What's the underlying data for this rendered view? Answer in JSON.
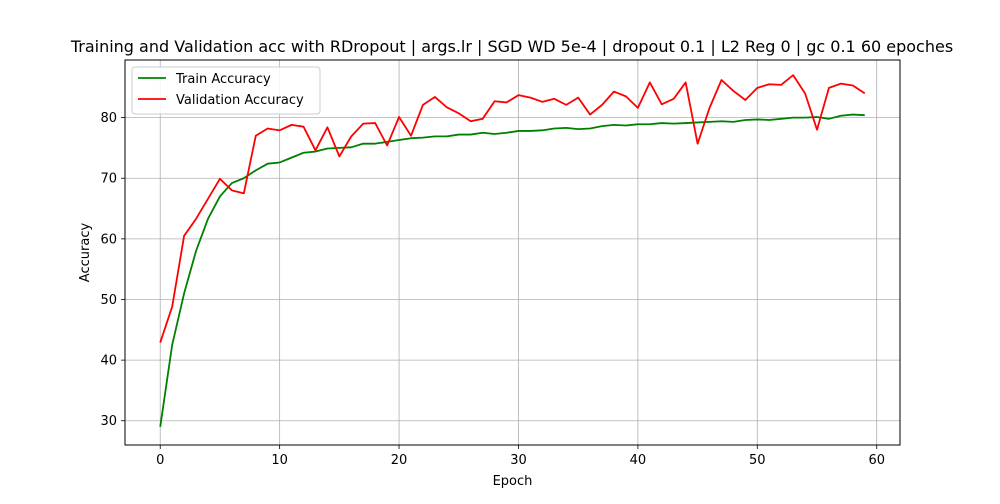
{
  "chart_data": {
    "type": "line",
    "title": "Training and Validation acc with RDropout | args.lr | SGD WD 5e-4 | dropout 0.1 | L2 Reg 0 | gc 0.1 60 epoches",
    "xlabel": "Epoch",
    "ylabel": "Accuracy",
    "xlim": [
      -2.95,
      61.95
    ],
    "ylim": [
      26.0,
      89.5
    ],
    "xticks": [
      0,
      10,
      20,
      30,
      40,
      50,
      60
    ],
    "yticks": [
      30,
      40,
      50,
      60,
      70,
      80
    ],
    "grid": true,
    "legend_position": "top-left",
    "x": [
      0,
      1,
      2,
      3,
      4,
      5,
      6,
      7,
      8,
      9,
      10,
      11,
      12,
      13,
      14,
      15,
      16,
      17,
      18,
      19,
      20,
      21,
      22,
      23,
      24,
      25,
      26,
      27,
      28,
      29,
      30,
      31,
      32,
      33,
      34,
      35,
      36,
      37,
      38,
      39,
      40,
      41,
      42,
      43,
      44,
      45,
      46,
      47,
      48,
      49,
      50,
      51,
      52,
      53,
      54,
      55,
      56,
      57,
      58,
      59
    ],
    "series": [
      {
        "name": "Train Accuracy",
        "color": "#008000",
        "values": [
          29.0,
          42.5,
          51.0,
          58.0,
          63.3,
          67.0,
          69.2,
          70.0,
          71.3,
          72.4,
          72.6,
          73.4,
          74.2,
          74.4,
          74.9,
          75.0,
          75.1,
          75.7,
          75.7,
          76.0,
          76.3,
          76.6,
          76.7,
          76.9,
          76.9,
          77.2,
          77.2,
          77.5,
          77.3,
          77.5,
          77.8,
          77.8,
          77.9,
          78.2,
          78.3,
          78.1,
          78.2,
          78.6,
          78.8,
          78.7,
          78.9,
          78.9,
          79.1,
          79.0,
          79.1,
          79.2,
          79.3,
          79.4,
          79.3,
          79.6,
          79.7,
          79.6,
          79.8,
          80.0,
          80.0,
          80.1,
          79.8,
          80.3,
          80.5,
          80.4
        ]
      },
      {
        "name": "Validation Accuracy",
        "color": "#ff0000",
        "values": [
          42.9,
          48.8,
          60.5,
          63.3,
          66.6,
          69.9,
          68.0,
          67.5,
          77.0,
          78.2,
          77.9,
          78.8,
          78.5,
          74.6,
          78.4,
          73.6,
          76.9,
          79.0,
          79.1,
          75.4,
          80.1,
          77.0,
          82.1,
          83.4,
          81.7,
          80.7,
          79.4,
          79.8,
          82.7,
          82.5,
          83.7,
          83.3,
          82.6,
          83.1,
          82.1,
          83.3,
          80.5,
          82.1,
          84.3,
          83.5,
          81.6,
          85.8,
          82.2,
          83.1,
          85.8,
          75.7,
          81.6,
          86.2,
          84.4,
          82.9,
          84.9,
          85.5,
          85.4,
          87.0,
          84.0,
          78.0,
          84.9,
          85.6,
          85.3,
          84.0
        ]
      }
    ]
  }
}
